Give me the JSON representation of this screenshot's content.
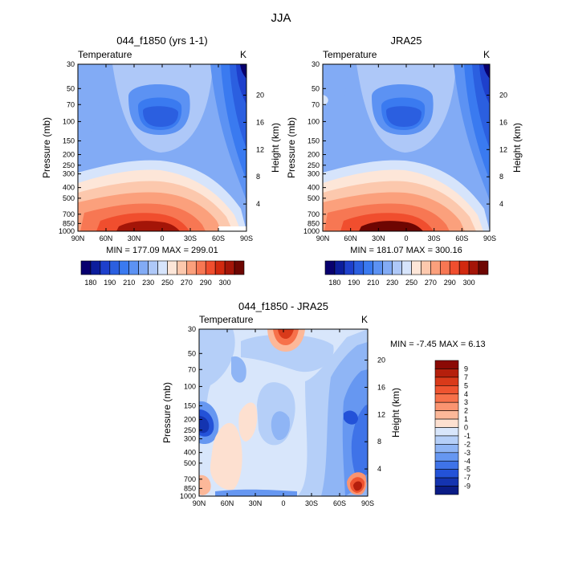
{
  "figure_title": "JJA",
  "chart_data": [
    {
      "type": "contour",
      "title": "044_f1850 (yrs 1-1)",
      "variable_label": "Temperature",
      "units": "K",
      "ylabel": "Pressure (mb)",
      "y2label": "Height (km)",
      "x_ticks": [
        "90N",
        "60N",
        "30N",
        "0",
        "30S",
        "60S",
        "90S"
      ],
      "p_ticks": [
        "30",
        "50",
        "70",
        "100",
        "150",
        "200",
        "250",
        "300",
        "400",
        "500",
        "700",
        "850",
        "1000"
      ],
      "h_ticks": [
        "4",
        "8",
        "12",
        "16",
        "20"
      ],
      "stats_text": "MIN = 177.09   MAX = 299.01",
      "colorbar_labels": [
        "180",
        "190",
        "210",
        "230",
        "250",
        "270",
        "290",
        "300"
      ],
      "colors": [
        "#08006e",
        "#0c1d9c",
        "#1e40cc",
        "#2b5fe0",
        "#3a7af0",
        "#5c92f3",
        "#82abf5",
        "#aec8f8",
        "#d6e4fb",
        "#fde6d8",
        "#fcc8ad",
        "#fba07c",
        "#f77753",
        "#f04e2e",
        "#d1290f",
        "#a41508",
        "#6e0602"
      ],
      "contour_levels": [
        180,
        190,
        200,
        210,
        220,
        230,
        240,
        250,
        260,
        270,
        280,
        290,
        300
      ]
    },
    {
      "type": "contour",
      "title": "JRA25",
      "variable_label": "Temperature",
      "units": "K",
      "ylabel": "Pressure (mb)",
      "y2label": "Height (km)",
      "x_ticks": [
        "90N",
        "60N",
        "30N",
        "0",
        "30S",
        "60S",
        "90S"
      ],
      "p_ticks": [
        "30",
        "50",
        "70",
        "100",
        "150",
        "200",
        "250",
        "300",
        "400",
        "500",
        "700",
        "850",
        "1000"
      ],
      "h_ticks": [
        "4",
        "8",
        "12",
        "16",
        "20"
      ],
      "stats_text": "MIN = 181.07   MAX = 300.16",
      "colorbar_labels": [
        "180",
        "190",
        "210",
        "230",
        "250",
        "270",
        "290",
        "300"
      ],
      "colors": [
        "#08006e",
        "#0c1d9c",
        "#1e40cc",
        "#2b5fe0",
        "#3a7af0",
        "#5c92f3",
        "#82abf5",
        "#aec8f8",
        "#d6e4fb",
        "#fde6d8",
        "#fcc8ad",
        "#fba07c",
        "#f77753",
        "#f04e2e",
        "#d1290f",
        "#a41508",
        "#6e0602"
      ],
      "contour_levels": [
        180,
        190,
        200,
        210,
        220,
        230,
        240,
        250,
        260,
        270,
        280,
        290,
        300
      ]
    },
    {
      "type": "contour",
      "title": "044_f1850 - JRA25",
      "variable_label": "Temperature",
      "units": "K",
      "ylabel": "Pressure (mb)",
      "y2label": "Height (km)",
      "x_ticks": [
        "90N",
        "60N",
        "30N",
        "0",
        "30S",
        "60S",
        "90S"
      ],
      "p_ticks": [
        "30",
        "50",
        "70",
        "100",
        "150",
        "200",
        "250",
        "300",
        "400",
        "500",
        "700",
        "850",
        "1000"
      ],
      "h_ticks": [
        "4",
        "8",
        "12",
        "16",
        "20"
      ],
      "stats_text": "MIN =   -7.45   MAX =    6.13",
      "colorbar_labels": [
        "9",
        "7",
        "5",
        "4",
        "3",
        "2",
        "1",
        "0",
        "-1",
        "-2",
        "-3",
        "-4",
        "-5",
        "-7",
        "-9"
      ],
      "colors": [
        "#8b0a05",
        "#b51f0c",
        "#d93a1a",
        "#ef5430",
        "#f7714a",
        "#fa9470",
        "#fcb899",
        "#fde0d0",
        "#d8e6fb",
        "#b5cff8",
        "#8fb5f5",
        "#6697f1",
        "#3f73e8",
        "#2352d8",
        "#1434b0",
        "#0a1c86"
      ],
      "contour_levels": [
        -9,
        -7,
        -5,
        -4,
        -3,
        -2,
        -1,
        0,
        1,
        2,
        3,
        4,
        5,
        7,
        9
      ]
    }
  ]
}
